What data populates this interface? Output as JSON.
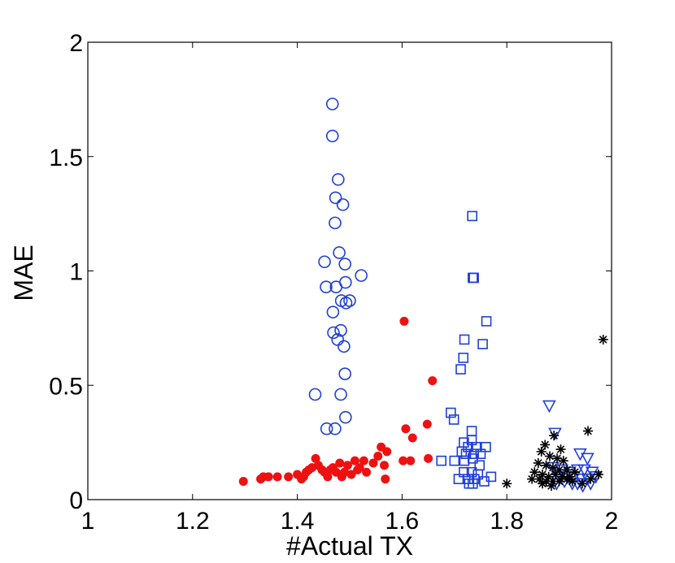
{
  "chart_data": {
    "type": "scatter",
    "title": "",
    "xlabel": "#Actual TX",
    "ylabel": "MAE",
    "xlim": [
      1,
      2
    ],
    "ylim": [
      0,
      2
    ],
    "x_ticks": [
      1,
      1.2,
      1.4,
      1.6,
      1.8,
      2
    ],
    "x_tick_labels": [
      "1",
      "1.2",
      "1.4",
      "1.6",
      "1.8",
      "2"
    ],
    "y_ticks": [
      0,
      0.5,
      1,
      1.5,
      2
    ],
    "y_tick_labels": [
      "0",
      "0.5",
      "1",
      "1.5",
      "2"
    ],
    "grid": false,
    "legend": "none",
    "series": [
      {
        "marker": "circle-open",
        "color": "#1f3fd6",
        "points": [
          [
            1.467,
            1.73
          ],
          [
            1.467,
            1.59
          ],
          [
            1.478,
            1.4
          ],
          [
            1.473,
            1.32
          ],
          [
            1.487,
            1.29
          ],
          [
            1.472,
            1.21
          ],
          [
            1.48,
            1.08
          ],
          [
            1.452,
            1.04
          ],
          [
            1.491,
            1.03
          ],
          [
            1.522,
            0.98
          ],
          [
            1.455,
            0.93
          ],
          [
            1.474,
            0.93
          ],
          [
            1.492,
            0.95
          ],
          [
            1.484,
            0.87
          ],
          [
            1.5,
            0.87
          ],
          [
            1.493,
            0.86
          ],
          [
            1.468,
            0.82
          ],
          [
            1.469,
            0.73
          ],
          [
            1.483,
            0.74
          ],
          [
            1.477,
            0.7
          ],
          [
            1.489,
            0.67
          ],
          [
            1.491,
            0.55
          ],
          [
            1.434,
            0.46
          ],
          [
            1.483,
            0.46
          ],
          [
            1.492,
            0.36
          ],
          [
            1.456,
            0.31
          ],
          [
            1.472,
            0.31
          ]
        ]
      },
      {
        "marker": "filled-circle",
        "color": "#ee1111",
        "points": [
          [
            1.297,
            0.08
          ],
          [
            1.33,
            0.09
          ],
          [
            1.335,
            0.1
          ],
          [
            1.345,
            0.1
          ],
          [
            1.362,
            0.1
          ],
          [
            1.383,
            0.1
          ],
          [
            1.4,
            0.11
          ],
          [
            1.408,
            0.09
          ],
          [
            1.412,
            0.1
          ],
          [
            1.417,
            0.12
          ],
          [
            1.422,
            0.13
          ],
          [
            1.428,
            0.14
          ],
          [
            1.435,
            0.18
          ],
          [
            1.44,
            0.15
          ],
          [
            1.447,
            0.13
          ],
          [
            1.452,
            0.12
          ],
          [
            1.458,
            0.1
          ],
          [
            1.463,
            0.13
          ],
          [
            1.468,
            0.14
          ],
          [
            1.474,
            0.12
          ],
          [
            1.481,
            0.16
          ],
          [
            1.485,
            0.1
          ],
          [
            1.49,
            0.12
          ],
          [
            1.496,
            0.15
          ],
          [
            1.503,
            0.11
          ],
          [
            1.51,
            0.17
          ],
          [
            1.515,
            0.13
          ],
          [
            1.519,
            0.14
          ],
          [
            1.527,
            0.17
          ],
          [
            1.532,
            0.12
          ],
          [
            1.545,
            0.16
          ],
          [
            1.554,
            0.19
          ],
          [
            1.56,
            0.23
          ],
          [
            1.566,
            0.15
          ],
          [
            1.568,
            0.09
          ],
          [
            1.571,
            0.21
          ],
          [
            1.602,
            0.17
          ],
          [
            1.604,
            0.78
          ],
          [
            1.607,
            0.31
          ],
          [
            1.616,
            0.17
          ],
          [
            1.62,
            0.27
          ],
          [
            1.648,
            0.33
          ],
          [
            1.65,
            0.18
          ],
          [
            1.658,
            0.52
          ]
        ]
      },
      {
        "marker": "square-open",
        "color": "#1f3fd6",
        "points": [
          [
            1.734,
            1.24
          ],
          [
            1.735,
            0.97
          ],
          [
            1.737,
            0.97
          ],
          [
            1.761,
            0.78
          ],
          [
            1.719,
            0.7
          ],
          [
            1.754,
            0.68
          ],
          [
            1.717,
            0.62
          ],
          [
            1.712,
            0.57
          ],
          [
            1.693,
            0.38
          ],
          [
            1.699,
            0.35
          ],
          [
            1.733,
            0.3
          ],
          [
            1.718,
            0.25
          ],
          [
            1.733,
            0.26
          ],
          [
            1.726,
            0.23
          ],
          [
            1.741,
            0.23
          ],
          [
            1.76,
            0.23
          ],
          [
            1.714,
            0.21
          ],
          [
            1.722,
            0.2
          ],
          [
            1.737,
            0.2
          ],
          [
            1.75,
            0.2
          ],
          [
            1.675,
            0.17
          ],
          [
            1.7,
            0.17
          ],
          [
            1.719,
            0.17
          ],
          [
            1.735,
            0.18
          ],
          [
            1.748,
            0.15
          ],
          [
            1.718,
            0.12
          ],
          [
            1.733,
            0.12
          ],
          [
            1.745,
            0.11
          ],
          [
            1.708,
            0.09
          ],
          [
            1.726,
            0.09
          ],
          [
            1.738,
            0.09
          ],
          [
            1.757,
            0.08
          ],
          [
            1.77,
            0.1
          ],
          [
            1.728,
            0.07
          ],
          [
            1.735,
            0.07
          ]
        ]
      },
      {
        "marker": "triangle-down-open",
        "color": "#1f3fd6",
        "points": [
          [
            1.881,
            0.41
          ],
          [
            1.892,
            0.29
          ],
          [
            1.94,
            0.2
          ],
          [
            1.954,
            0.18
          ],
          [
            1.888,
            0.14
          ],
          [
            1.905,
            0.13
          ],
          [
            1.92,
            0.12
          ],
          [
            1.935,
            0.13
          ],
          [
            1.948,
            0.13
          ],
          [
            1.963,
            0.12
          ],
          [
            1.97,
            0.1
          ],
          [
            1.9,
            0.1
          ],
          [
            1.915,
            0.1
          ],
          [
            1.928,
            0.1
          ],
          [
            1.943,
            0.09
          ],
          [
            1.955,
            0.09
          ],
          [
            1.895,
            0.07
          ],
          [
            1.91,
            0.08
          ],
          [
            1.925,
            0.07
          ],
          [
            1.935,
            0.07
          ],
          [
            1.96,
            0.07
          ],
          [
            1.945,
            0.06
          ]
        ]
      },
      {
        "marker": "asterisk",
        "color": "#000000",
        "points": [
          [
            1.984,
            0.7
          ],
          [
            1.955,
            0.3
          ],
          [
            1.89,
            0.28
          ],
          [
            1.873,
            0.24
          ],
          [
            1.903,
            0.22
          ],
          [
            1.866,
            0.21
          ],
          [
            1.882,
            0.19
          ],
          [
            1.896,
            0.18
          ],
          [
            1.908,
            0.17
          ],
          [
            1.86,
            0.16
          ],
          [
            1.875,
            0.15
          ],
          [
            1.888,
            0.14
          ],
          [
            1.9,
            0.13
          ],
          [
            1.915,
            0.13
          ],
          [
            1.93,
            0.12
          ],
          [
            1.853,
            0.12
          ],
          [
            1.868,
            0.11
          ],
          [
            1.88,
            0.1
          ],
          [
            1.893,
            0.11
          ],
          [
            1.906,
            0.1
          ],
          [
            1.92,
            0.1
          ],
          [
            1.848,
            0.09
          ],
          [
            1.862,
            0.09
          ],
          [
            1.875,
            0.08
          ],
          [
            1.888,
            0.08
          ],
          [
            1.9,
            0.08
          ],
          [
            1.915,
            0.09
          ],
          [
            1.975,
            0.11
          ],
          [
            1.96,
            0.09
          ],
          [
            1.868,
            0.07
          ],
          [
            1.944,
            0.07
          ],
          [
            1.8,
            0.07
          ],
          [
            1.885,
            0.06
          ],
          [
            1.925,
            0.08
          ]
        ]
      }
    ]
  }
}
